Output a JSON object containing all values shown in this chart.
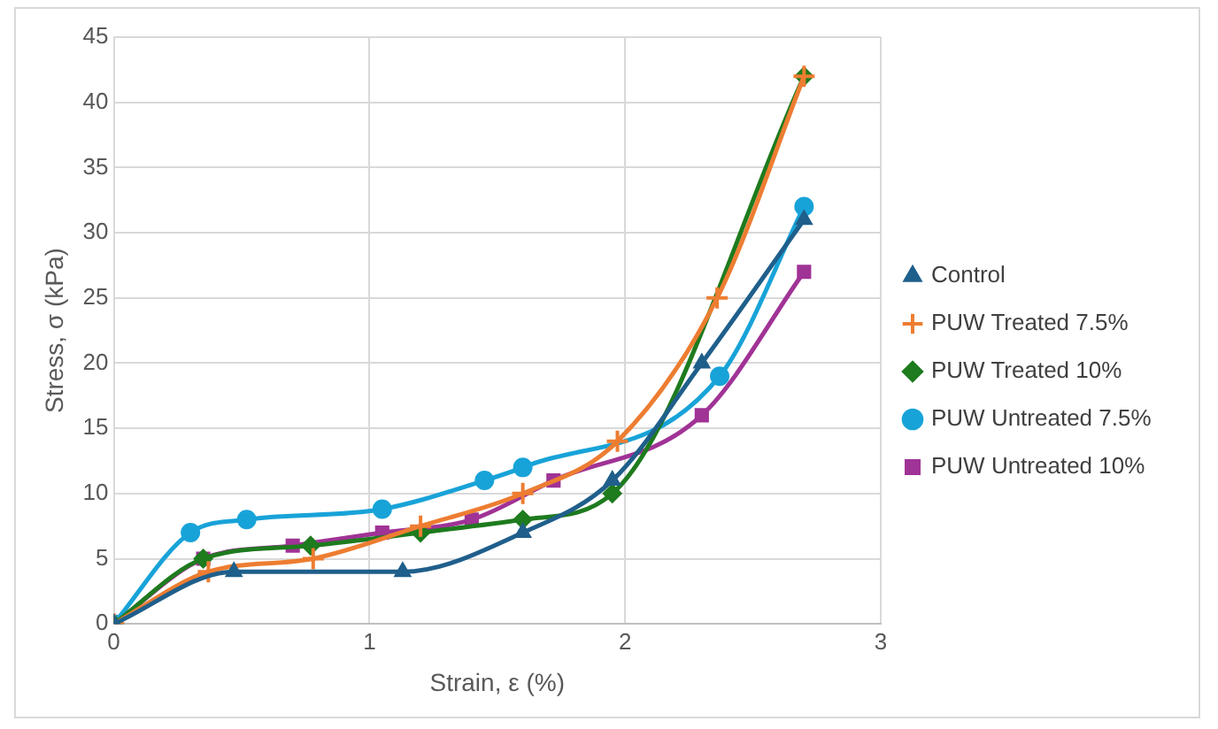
{
  "chart_data": {
    "type": "line",
    "xlabel": "Strain, ε (%)",
    "ylabel": "Stress, σ (kPa)",
    "xlim": [
      0,
      3
    ],
    "xticks": [
      0,
      1,
      2,
      3
    ],
    "ylim": [
      0,
      45
    ],
    "yticks": [
      0,
      5,
      10,
      15,
      20,
      25,
      30,
      35,
      40,
      45
    ],
    "grid": true,
    "legend": "right",
    "series": [
      {
        "name": "Control",
        "color": "#1f5f8b",
        "marker": "triangle",
        "x": [
          0,
          0.47,
          1.13,
          1.6,
          1.95,
          2.3,
          2.7
        ],
        "values": [
          0,
          4,
          4,
          7,
          11,
          20,
          31
        ]
      },
      {
        "name": "PUW Treated 7.5%",
        "color": "#ed7d31",
        "marker": "cross",
        "x": [
          0,
          0.37,
          0.78,
          1.2,
          1.6,
          1.97,
          2.36,
          2.7
        ],
        "values": [
          0,
          4,
          5,
          7.5,
          10,
          14,
          25,
          42
        ]
      },
      {
        "name": "PUW Treated 10%",
        "color": "#1e7b1e",
        "marker": "diamond",
        "x": [
          0,
          0.35,
          0.77,
          1.2,
          1.6,
          1.95,
          2.7
        ],
        "values": [
          0,
          5,
          6,
          7,
          8,
          10,
          42
        ]
      },
      {
        "name": "PUW Untreated 7.5%",
        "color": "#18a3d8",
        "marker": "circle",
        "x": [
          0,
          0.3,
          0.52,
          1.05,
          1.45,
          1.6,
          2.37,
          2.7
        ],
        "values": [
          0,
          7,
          8,
          8.8,
          11,
          12,
          19,
          32
        ]
      },
      {
        "name": "PUW Untreated 10%",
        "color": "#a03396",
        "marker": "square",
        "x": [
          0,
          0.35,
          0.7,
          1.05,
          1.4,
          1.72,
          2.3,
          2.7
        ],
        "values": [
          0,
          5,
          6,
          7,
          8,
          11,
          16,
          27
        ]
      }
    ]
  }
}
